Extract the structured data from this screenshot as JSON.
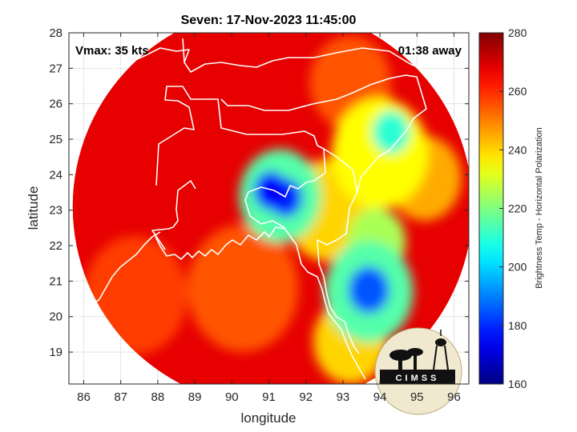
{
  "chart_data": {
    "type": "heatmap",
    "title": "Seven: 17-Nov-2023 11:45:00",
    "xlabel": "longitude",
    "ylabel": "latitude",
    "xlim": [
      85.6,
      96.4
    ],
    "ylim": [
      18.1,
      28
    ],
    "x_ticks": [
      86,
      87,
      88,
      89,
      90,
      91,
      92,
      93,
      94,
      95,
      96
    ],
    "y_ticks": [
      19,
      20,
      21,
      22,
      23,
      24,
      25,
      26,
      27,
      28
    ],
    "grid": true,
    "annotations": {
      "vmax": "Vmax: 35 kts",
      "time_away": "01:38 away"
    },
    "colorbar": {
      "label": "Brightness Temp - Horizontal Polarization",
      "range": [
        160,
        280
      ],
      "ticks": [
        160,
        180,
        200,
        220,
        240,
        260,
        280
      ],
      "colormap": "jet"
    },
    "swath": {
      "center_lon": 91.1,
      "center_lat": 23.1,
      "radius_deg": 5.4
    },
    "cold_features": [
      {
        "lon": 91.05,
        "lat": 23.55,
        "value": 175,
        "extent_deg": 0.45
      },
      {
        "lon": 91.45,
        "lat": 23.35,
        "value": 180,
        "extent_deg": 0.45
      },
      {
        "lon": 93.7,
        "lat": 20.75,
        "value": 185,
        "extent_deg": 0.55
      },
      {
        "lon": 91.3,
        "lat": 23.4,
        "value": 215,
        "extent_deg": 1.1
      },
      {
        "lon": 93.7,
        "lat": 20.7,
        "value": 215,
        "extent_deg": 1.2
      },
      {
        "lon": 94.3,
        "lat": 25.2,
        "value": 210,
        "extent_deg": 0.5
      },
      {
        "lon": 94.0,
        "lat": 24.6,
        "value": 235,
        "extent_deg": 1.3
      },
      {
        "lon": 93.9,
        "lat": 22.1,
        "value": 225,
        "extent_deg": 0.8
      },
      {
        "lon": 92.6,
        "lat": 23.0,
        "value": 240,
        "extent_deg": 1.2
      },
      {
        "lon": 93.2,
        "lat": 19.3,
        "value": 240,
        "extent_deg": 1.0
      },
      {
        "lon": 95.2,
        "lat": 23.9,
        "value": 245,
        "extent_deg": 1.0
      },
      {
        "lon": 90.3,
        "lat": 20.8,
        "value": 255,
        "extent_deg": 1.5
      },
      {
        "lon": 87.4,
        "lat": 20.6,
        "value": 258,
        "extent_deg": 1.4
      },
      {
        "lon": 93.2,
        "lat": 26.6,
        "value": 255,
        "extent_deg": 1.1
      }
    ],
    "logo": "CIMSS"
  }
}
